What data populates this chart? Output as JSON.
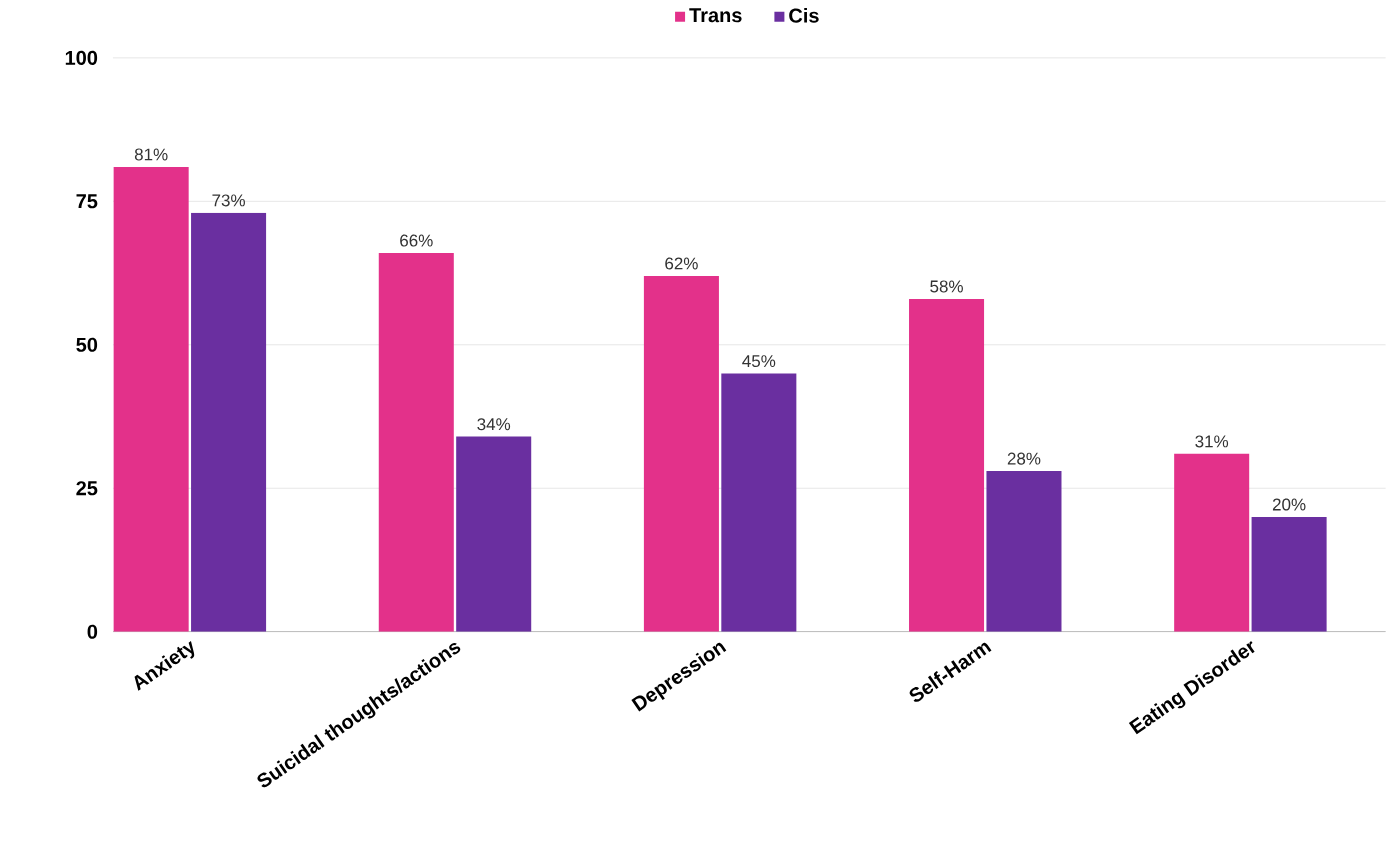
{
  "chart_data": {
    "type": "bar",
    "categories": [
      "Anxiety",
      "Suicidal thoughts/actions",
      "Depression",
      "Self-Harm",
      "Eating Disorder"
    ],
    "series": [
      {
        "name": "Trans",
        "color": "#e3318a",
        "values": [
          81,
          66,
          62,
          58,
          31
        ],
        "value_labels": [
          "81%",
          "66%",
          "62%",
          "58%",
          "31%"
        ]
      },
      {
        "name": "Cis",
        "color": "#6a2fa0",
        "values": [
          73,
          34,
          45,
          28,
          20
        ],
        "value_labels": [
          "73%",
          "34%",
          "45%",
          "28%",
          "20%"
        ]
      }
    ],
    "ylim": [
      0,
      100
    ],
    "yticks": [
      0,
      25,
      50,
      75,
      100
    ],
    "grid": "y",
    "legend": "top"
  }
}
